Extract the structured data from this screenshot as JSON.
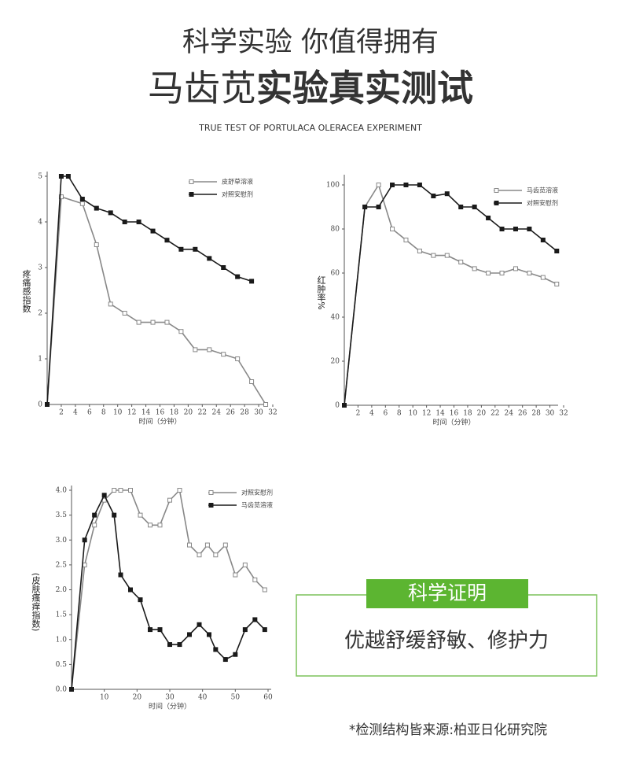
{
  "header": {
    "title": "科学实验 你值得拥有",
    "headline_regular": "马齿苋",
    "headline_bold": "实验真实测试",
    "subtitle": "TRUE TEST OF PORTULACA OLERACEA EXPERIMENT"
  },
  "chart_data": [
    {
      "type": "line",
      "xlabel": "时间（分钟）",
      "ylabel": "疼痛感指数",
      "xlim": [
        0,
        32
      ],
      "ylim": [
        0,
        5
      ],
      "xticks": [
        2,
        4,
        6,
        8,
        10,
        12,
        14,
        16,
        18,
        20,
        22,
        24,
        26,
        28,
        30,
        32
      ],
      "yticks": [
        0,
        1,
        2,
        3,
        4,
        5
      ],
      "legend": "upper right",
      "series": [
        {
          "name": "皮舒草溶液",
          "color": "#888888",
          "marker": "open-square",
          "x": [
            0,
            2,
            5,
            7,
            9,
            11,
            13,
            15,
            17,
            19,
            21,
            23,
            25,
            27,
            29,
            31
          ],
          "values": [
            0,
            4.55,
            4.4,
            3.5,
            2.2,
            2.0,
            1.8,
            1.8,
            1.8,
            1.6,
            1.2,
            1.2,
            1.1,
            1.0,
            0.5,
            0
          ]
        },
        {
          "name": "对照安慰剂",
          "color": "#1a1a1a",
          "marker": "filled-square",
          "x": [
            0,
            2,
            3,
            5,
            7,
            9,
            11,
            13,
            15,
            17,
            19,
            21,
            23,
            25,
            27,
            29
          ],
          "values": [
            0,
            5,
            5,
            4.5,
            4.3,
            4.2,
            4.0,
            4.0,
            3.8,
            3.6,
            3.4,
            3.4,
            3.2,
            3.0,
            2.8,
            2.7
          ]
        }
      ]
    },
    {
      "type": "line",
      "xlabel": "时间（分钟）",
      "ylabel": "红肿率%",
      "xlim": [
        0,
        32
      ],
      "ylim": [
        0,
        100
      ],
      "xticks": [
        2,
        4,
        6,
        8,
        10,
        12,
        14,
        16,
        18,
        20,
        22,
        24,
        26,
        28,
        30,
        32
      ],
      "yticks": [
        0,
        20,
        40,
        60,
        80,
        100
      ],
      "legend": "upper right",
      "series": [
        {
          "name": "马齿苋溶液",
          "color": "#888888",
          "marker": "open-square",
          "x": [
            0,
            3,
            5,
            7,
            9,
            11,
            13,
            15,
            17,
            19,
            21,
            23,
            25,
            27,
            29,
            31
          ],
          "values": [
            0,
            90,
            100,
            80,
            75,
            70,
            68,
            68,
            65,
            62,
            60,
            60,
            62,
            60,
            58,
            55
          ]
        },
        {
          "name": "对照安慰剂",
          "color": "#1a1a1a",
          "marker": "filled-square",
          "x": [
            0,
            3,
            5,
            7,
            9,
            11,
            13,
            15,
            17,
            19,
            21,
            23,
            25,
            27,
            29,
            31
          ],
          "values": [
            0,
            90,
            90,
            100,
            100,
            100,
            95,
            96,
            90,
            90,
            85,
            80,
            80,
            80,
            75,
            70
          ]
        }
      ]
    },
    {
      "type": "line",
      "xlabel": "时间（分钟）",
      "ylabel": "(皮肤瘙痒指数)",
      "xlim": [
        0,
        60
      ],
      "ylim": [
        0,
        4
      ],
      "xticks": [
        10,
        20,
        30,
        40,
        50,
        60
      ],
      "yticks": [
        {
          "value": 0,
          "label": "0.0"
        },
        0.5,
        {
          "value": 1,
          "label": "1.0"
        },
        1.5,
        {
          "value": 2,
          "label": "2.0"
        },
        2.5,
        {
          "value": 3,
          "label": "3.0"
        },
        3.5,
        {
          "value": 4,
          "label": "4.0"
        }
      ],
      "legend": "upper right",
      "series": [
        {
          "name": "对照安慰剂",
          "color": "#888888",
          "marker": "open-square",
          "x": [
            0,
            4,
            7,
            10,
            13,
            15,
            18,
            21,
            24,
            27,
            30,
            33,
            36,
            39,
            41.5,
            44,
            47,
            50,
            53,
            56,
            59
          ],
          "values": [
            0,
            2.5,
            3.3,
            3.8,
            4.0,
            4.0,
            4.0,
            3.5,
            3.3,
            3.3,
            3.8,
            4.0,
            2.9,
            2.7,
            2.9,
            2.7,
            2.9,
            2.3,
            2.5,
            2.2,
            2.0
          ]
        },
        {
          "name": "马齿苋溶液",
          "color": "#1a1a1a",
          "marker": "filled-square",
          "x": [
            0,
            4,
            7,
            10,
            13,
            15,
            18,
            21,
            24,
            27,
            30,
            33,
            36,
            39,
            42,
            44,
            47,
            50,
            53,
            56,
            59
          ],
          "values": [
            0,
            3.0,
            3.5,
            3.9,
            3.5,
            2.3,
            2.0,
            1.8,
            1.2,
            1.2,
            0.9,
            0.9,
            1.1,
            1.3,
            1.1,
            0.8,
            0.6,
            0.7,
            1.2,
            1.4,
            1.2
          ]
        }
      ]
    }
  ],
  "callout": {
    "badge": "科学证明",
    "text": "优越舒缓舒敏、修护力"
  },
  "footnote": "*检测结构皆来源:柏亚日化研究院"
}
